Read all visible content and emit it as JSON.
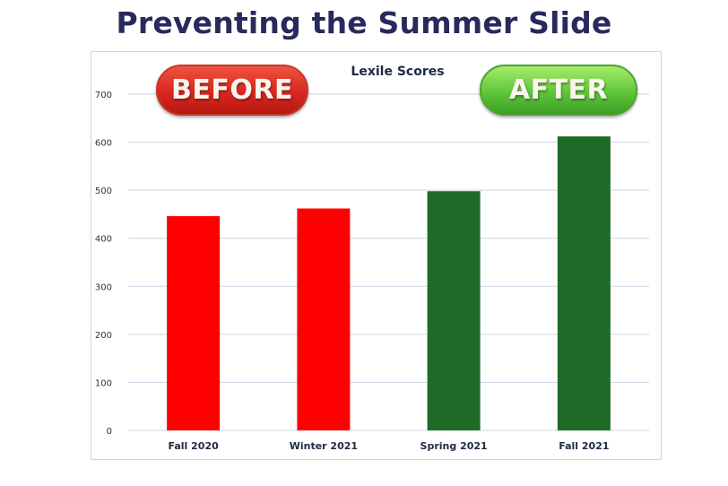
{
  "page": {
    "title": "Preventing the Summer Slide"
  },
  "badges": {
    "before": "BEFORE",
    "after": "AFTER"
  },
  "colors": {
    "title": "#272a5c",
    "before_bar": "#ff0000",
    "after_bar": "#1e6b27",
    "grid": "#c9d5e6"
  },
  "chart_data": {
    "type": "bar",
    "title": "Lexile Scores",
    "xlabel": "",
    "ylabel": "",
    "categories": [
      "Fall 2020",
      "Winter 2021",
      "Spring 2021",
      "Fall 2021"
    ],
    "values": [
      446,
      462,
      498,
      612
    ],
    "bar_colors": [
      "#ff0000",
      "#ff0000",
      "#1e6b27",
      "#1e6b27"
    ],
    "ylim": [
      0,
      700
    ],
    "yticks": [
      0,
      100,
      200,
      300,
      400,
      500,
      600,
      700
    ],
    "grid": true,
    "legend": "none"
  }
}
